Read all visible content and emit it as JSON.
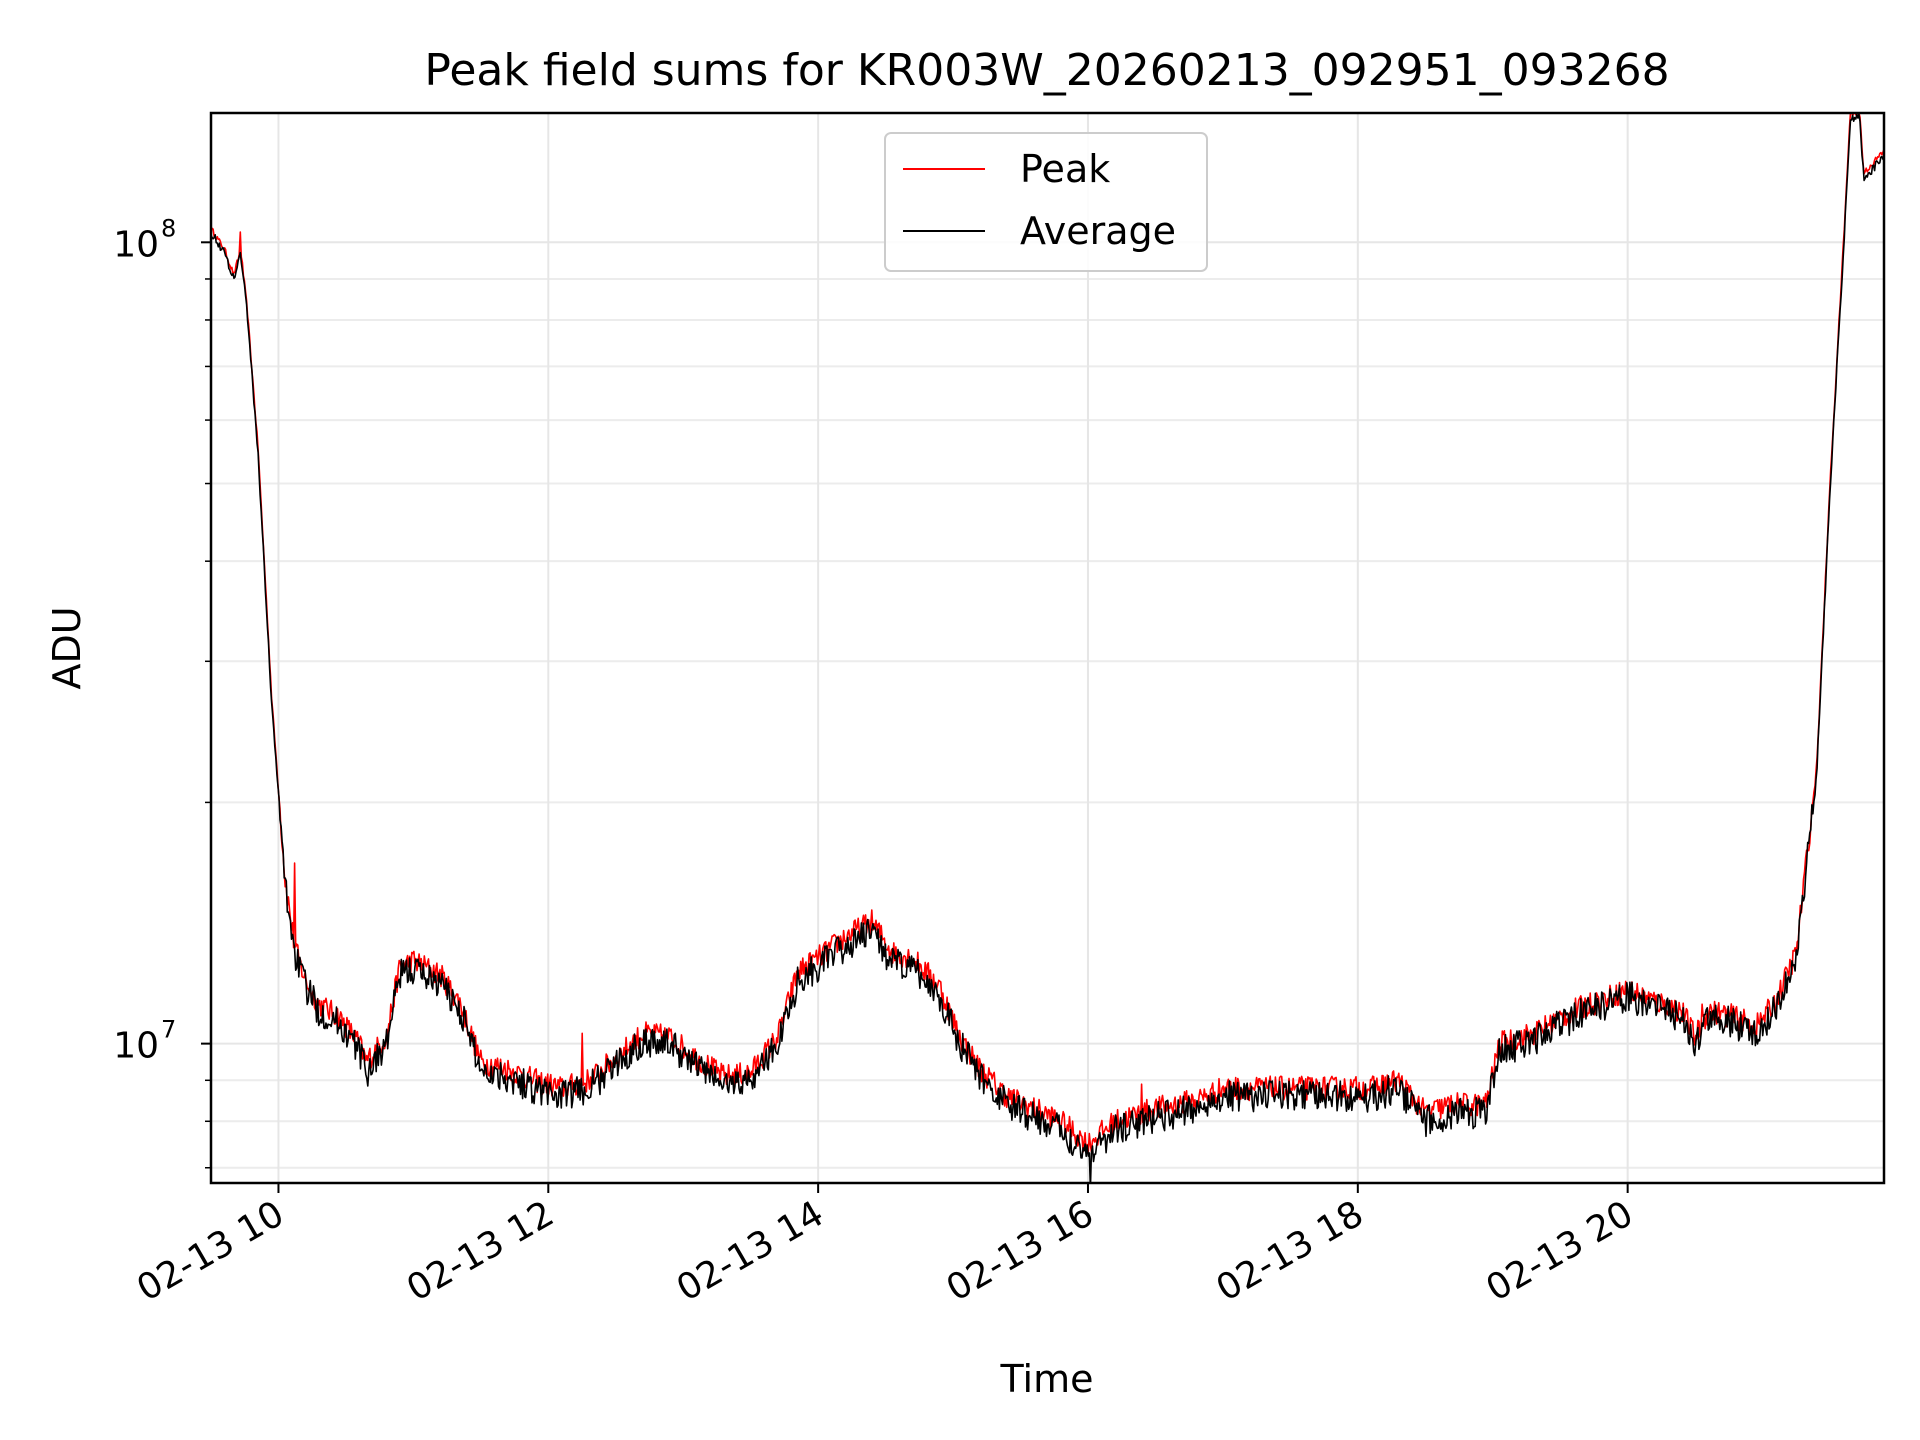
{
  "chart_data": {
    "type": "line",
    "title": "Peak field sums for KR003W_20260213_092951_093268",
    "xlabel": "Time",
    "ylabel": "ADU",
    "yscale": "log",
    "xlim_hours": [
      9.5,
      21.9
    ],
    "ylim": [
      6700000,
      145000000
    ],
    "x_ticks": [
      {
        "hour": 10,
        "label": "02-13 10"
      },
      {
        "hour": 12,
        "label": "02-13 12"
      },
      {
        "hour": 14,
        "label": "02-13 14"
      },
      {
        "hour": 16,
        "label": "02-13 16"
      },
      {
        "hour": 18,
        "label": "02-13 18"
      },
      {
        "hour": 20,
        "label": "02-13 20"
      }
    ],
    "y_ticks": [
      {
        "value": 10000000,
        "base": "10",
        "exp": "7"
      },
      {
        "value": 100000000,
        "base": "10",
        "exp": "8"
      }
    ],
    "y_minor_ticks": [
      7000000,
      8000000,
      9000000,
      20000000,
      30000000,
      40000000,
      50000000,
      60000000,
      70000000,
      80000000,
      90000000
    ],
    "grid": true,
    "legend": {
      "location": "upper center",
      "entries": [
        "Peak",
        "Average"
      ]
    },
    "series": [
      {
        "name": "Peak",
        "color": "#ff0000",
        "noise": 0.035,
        "spikes": [
          [
            10.12,
            16800000
          ],
          [
            12.25,
            10300000
          ],
          [
            16.4,
            8900000
          ],
          [
            20.55,
            11200000
          ],
          [
            9.72,
            103000000
          ]
        ],
        "anchors": [
          [
            9.5,
            104000000
          ],
          [
            9.6,
            98000000
          ],
          [
            9.67,
            91000000
          ],
          [
            9.72,
            98000000
          ],
          [
            9.77,
            82000000
          ],
          [
            9.85,
            55000000
          ],
          [
            9.95,
            27000000
          ],
          [
            10.05,
            16000000
          ],
          [
            10.12,
            13200000
          ],
          [
            10.2,
            12000000
          ],
          [
            10.3,
            11200000
          ],
          [
            10.45,
            10800000
          ],
          [
            10.6,
            10000000
          ],
          [
            10.65,
            9500000
          ],
          [
            10.8,
            10200000
          ],
          [
            10.9,
            12500000
          ],
          [
            11.0,
            12700000
          ],
          [
            11.2,
            12200000
          ],
          [
            11.35,
            11200000
          ],
          [
            11.5,
            9500000
          ],
          [
            11.7,
            9300000
          ],
          [
            11.9,
            9000000
          ],
          [
            12.1,
            8800000
          ],
          [
            12.3,
            9000000
          ],
          [
            12.5,
            9600000
          ],
          [
            12.7,
            10300000
          ],
          [
            12.9,
            10200000
          ],
          [
            13.1,
            9600000
          ],
          [
            13.3,
            9100000
          ],
          [
            13.5,
            9200000
          ],
          [
            13.7,
            10200000
          ],
          [
            13.85,
            12300000
          ],
          [
            14.0,
            12800000
          ],
          [
            14.2,
            13600000
          ],
          [
            14.4,
            14200000
          ],
          [
            14.55,
            13000000
          ],
          [
            14.7,
            12800000
          ],
          [
            14.9,
            11800000
          ],
          [
            15.05,
            10200000
          ],
          [
            15.2,
            9300000
          ],
          [
            15.4,
            8600000
          ],
          [
            15.6,
            8300000
          ],
          [
            15.8,
            8000000
          ],
          [
            16.0,
            7500000
          ],
          [
            16.2,
            8000000
          ],
          [
            16.5,
            8300000
          ],
          [
            16.8,
            8500000
          ],
          [
            17.0,
            8800000
          ],
          [
            17.3,
            8800000
          ],
          [
            17.6,
            8800000
          ],
          [
            17.9,
            8800000
          ],
          [
            18.1,
            8800000
          ],
          [
            18.3,
            9000000
          ],
          [
            18.5,
            8200000
          ],
          [
            18.7,
            8400000
          ],
          [
            18.95,
            8400000
          ],
          [
            19.05,
            10000000
          ],
          [
            19.3,
            10300000
          ],
          [
            19.6,
            11000000
          ],
          [
            19.9,
            11500000
          ],
          [
            20.0,
            11700000
          ],
          [
            20.2,
            11300000
          ],
          [
            20.4,
            11000000
          ],
          [
            20.5,
            10200000
          ],
          [
            20.6,
            11000000
          ],
          [
            20.8,
            10800000
          ],
          [
            20.95,
            10500000
          ],
          [
            21.1,
            11300000
          ],
          [
            21.25,
            13000000
          ],
          [
            21.4,
            22000000
          ],
          [
            21.5,
            50000000
          ],
          [
            21.6,
            100000000
          ],
          [
            21.65,
            145000000
          ],
          [
            21.72,
            145000000
          ],
          [
            21.75,
            122000000
          ],
          [
            21.9,
            130000000
          ]
        ]
      },
      {
        "name": "Average",
        "color": "#000000",
        "noise": 0.045,
        "spikes": [
          [
            16.02,
            6600000
          ],
          [
            18.55,
            7800000
          ]
        ],
        "anchors": [
          [
            9.5,
            103000000
          ],
          [
            9.6,
            97000000
          ],
          [
            9.67,
            90000000
          ],
          [
            9.72,
            97000000
          ],
          [
            9.77,
            81000000
          ],
          [
            9.85,
            54000000
          ],
          [
            9.95,
            26500000
          ],
          [
            10.05,
            15800000
          ],
          [
            10.12,
            13000000
          ],
          [
            10.2,
            11800000
          ],
          [
            10.3,
            11000000
          ],
          [
            10.45,
            10600000
          ],
          [
            10.6,
            9800000
          ],
          [
            10.65,
            9200000
          ],
          [
            10.8,
            10000000
          ],
          [
            10.9,
            12200000
          ],
          [
            11.0,
            12400000
          ],
          [
            11.2,
            11900000
          ],
          [
            11.35,
            11000000
          ],
          [
            11.5,
            9300000
          ],
          [
            11.7,
            9100000
          ],
          [
            11.9,
            8800000
          ],
          [
            12.1,
            8600000
          ],
          [
            12.3,
            8800000
          ],
          [
            12.5,
            9400000
          ],
          [
            12.7,
            10100000
          ],
          [
            12.9,
            10000000
          ],
          [
            13.1,
            9400000
          ],
          [
            13.3,
            8900000
          ],
          [
            13.5,
            9000000
          ],
          [
            13.7,
            10000000
          ],
          [
            13.85,
            12000000
          ],
          [
            14.0,
            12500000
          ],
          [
            14.2,
            13200000
          ],
          [
            14.4,
            13800000
          ],
          [
            14.55,
            12600000
          ],
          [
            14.7,
            12400000
          ],
          [
            14.9,
            11500000
          ],
          [
            15.05,
            10000000
          ],
          [
            15.2,
            9100000
          ],
          [
            15.4,
            8400000
          ],
          [
            15.6,
            8100000
          ],
          [
            15.8,
            7800000
          ],
          [
            16.0,
            7300000
          ],
          [
            16.2,
            7800000
          ],
          [
            16.5,
            8100000
          ],
          [
            16.8,
            8300000
          ],
          [
            17.0,
            8600000
          ],
          [
            17.3,
            8600000
          ],
          [
            17.6,
            8600000
          ],
          [
            17.9,
            8600000
          ],
          [
            18.1,
            8600000
          ],
          [
            18.3,
            8800000
          ],
          [
            18.5,
            8000000
          ],
          [
            18.7,
            8200000
          ],
          [
            18.95,
            8200000
          ],
          [
            19.05,
            9800000
          ],
          [
            19.3,
            10100000
          ],
          [
            19.6,
            10800000
          ],
          [
            19.9,
            11300000
          ],
          [
            20.0,
            11500000
          ],
          [
            20.2,
            11100000
          ],
          [
            20.4,
            10800000
          ],
          [
            20.5,
            10000000
          ],
          [
            20.6,
            10800000
          ],
          [
            20.8,
            10600000
          ],
          [
            20.95,
            10300000
          ],
          [
            21.1,
            11100000
          ],
          [
            21.25,
            12800000
          ],
          [
            21.4,
            21500000
          ],
          [
            21.5,
            49000000
          ],
          [
            21.6,
            98000000
          ],
          [
            21.65,
            143000000
          ],
          [
            21.72,
            143000000
          ],
          [
            21.75,
            120000000
          ],
          [
            21.9,
            128000000
          ]
        ]
      }
    ]
  }
}
